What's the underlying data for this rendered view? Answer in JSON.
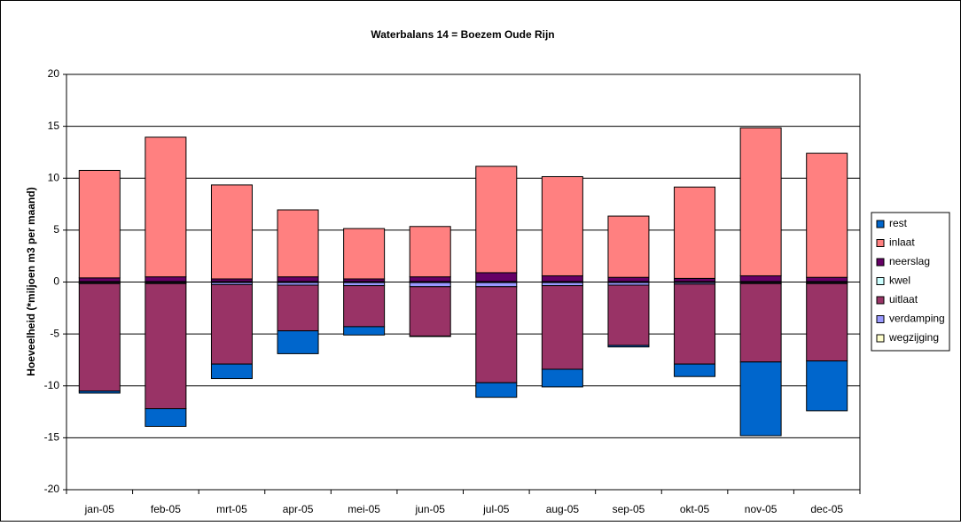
{
  "chart_data": {
    "type": "stacked-bar",
    "title": "Waterbalans 14 = Boezem Oude Rijn",
    "y_label": "Hoeveelheid (*miljoen m3 per maand)",
    "categories": [
      "jan-05",
      "feb-05",
      "mrt-05",
      "apr-05",
      "mei-05",
      "jun-05",
      "jul-05",
      "aug-05",
      "sep-05",
      "okt-05",
      "nov-05",
      "dec-05"
    ],
    "series": [
      {
        "name": "rest",
        "color": "#0066cc",
        "values": [
          -0.2,
          -1.7,
          -1.4,
          -2.2,
          -0.8,
          -0.05,
          -1.4,
          -1.7,
          -0.15,
          -1.2,
          -7.1,
          -4.8
        ]
      },
      {
        "name": "inlaat",
        "color": "#ff8080",
        "values": [
          10.35,
          13.45,
          9.05,
          6.45,
          4.85,
          4.85,
          10.25,
          9.55,
          5.9,
          8.8,
          14.25,
          11.95
        ]
      },
      {
        "name": "neerslag",
        "color": "#660066",
        "values": [
          0.35,
          0.45,
          0.25,
          0.45,
          0.25,
          0.45,
          0.85,
          0.55,
          0.4,
          0.3,
          0.55,
          0.4
        ]
      },
      {
        "name": "kwel",
        "color": "#ccffff",
        "values": [
          0.05,
          0.05,
          0.05,
          0.05,
          0.05,
          0.05,
          0.05,
          0.05,
          0.05,
          0.05,
          0.05,
          0.05
        ]
      },
      {
        "name": "uitlaat",
        "color": "#993366",
        "values": [
          -10.35,
          -12.05,
          -7.65,
          -4.4,
          -3.95,
          -4.75,
          -9.25,
          -8.05,
          -5.8,
          -7.7,
          -7.55,
          -7.45
        ]
      },
      {
        "name": "verdamping",
        "color": "#9999ff",
        "values": [
          -0.1,
          -0.1,
          -0.2,
          -0.25,
          -0.3,
          -0.4,
          -0.4,
          -0.3,
          -0.25,
          -0.15,
          -0.1,
          -0.1
        ]
      },
      {
        "name": "wegzijging",
        "color": "#ffffcc",
        "values": [
          -0.05,
          -0.05,
          -0.05,
          -0.05,
          -0.05,
          -0.05,
          -0.05,
          -0.05,
          -0.05,
          -0.05,
          -0.05,
          -0.05
        ]
      }
    ],
    "ylim": [
      -20,
      20
    ],
    "yticks": [
      -20,
      -15,
      -10,
      -5,
      0,
      5,
      10,
      15,
      20
    ],
    "grid": true,
    "legend": "right"
  }
}
